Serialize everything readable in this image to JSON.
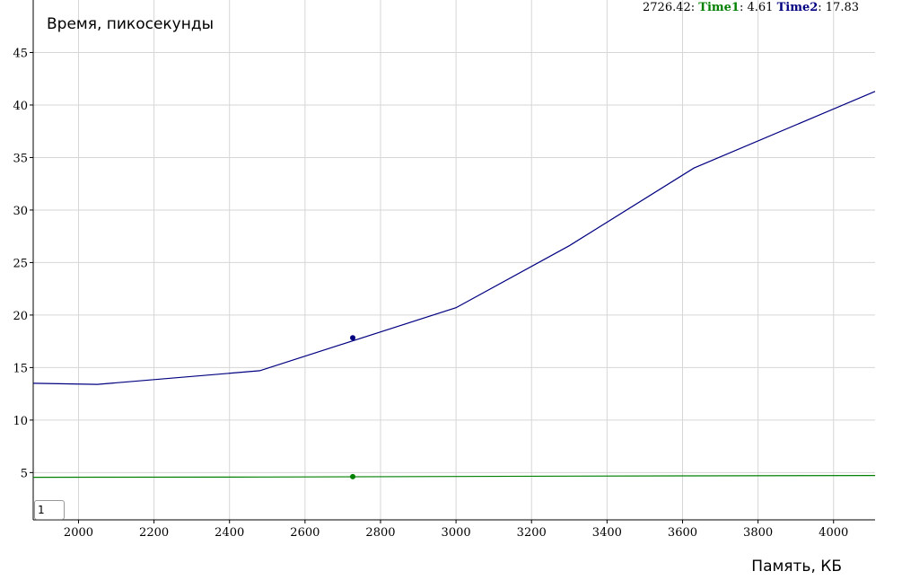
{
  "legend": {
    "x_value": "2726.42",
    "series1_name": "Time1",
    "series1_value": "4.61",
    "series2_name": "Time2",
    "series2_value": "17.83",
    "colon": ": "
  },
  "roll_period_input": {
    "value": "1"
  },
  "chart_data": {
    "type": "line",
    "title": "Время, пикосекунды",
    "xlabel": "Память, КБ",
    "ylabel": "",
    "xlim": [
      1880,
      4110
    ],
    "ylim": [
      0.5,
      50
    ],
    "grid": true,
    "x_ticks": [
      2000,
      2200,
      2400,
      2600,
      2800,
      3000,
      3200,
      3400,
      3600,
      3800,
      4000
    ],
    "y_ticks": [
      5,
      10,
      15,
      20,
      25,
      30,
      35,
      40,
      45
    ],
    "series": [
      {
        "name": "Time1",
        "color": "#008000",
        "x": [
          1880,
          2050,
          2480,
          3000,
          3300,
          3630,
          4110
        ],
        "y": [
          4.55,
          4.56,
          4.58,
          4.63,
          4.66,
          4.69,
          4.72
        ]
      },
      {
        "name": "Time2",
        "color": "#000080",
        "x": [
          1880,
          2050,
          2480,
          3000,
          3300,
          3630,
          4110
        ],
        "y": [
          13.5,
          13.4,
          14.7,
          20.7,
          26.6,
          34.0,
          41.3
        ]
      }
    ],
    "highlight": {
      "x": 2726.42,
      "values": [
        4.61,
        17.83
      ]
    }
  }
}
